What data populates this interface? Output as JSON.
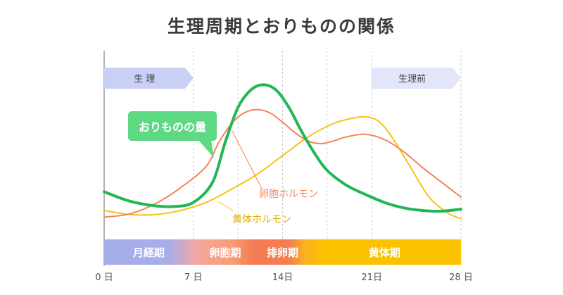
{
  "chart_data": {
    "type": "line",
    "title": "生理周期とおりものの関係",
    "xlim": [
      0,
      28
    ],
    "x_ticks": [
      {
        "value": 0,
        "label": "0 日"
      },
      {
        "value": 7,
        "label": "7 日"
      },
      {
        "value": 14,
        "label": "14日"
      },
      {
        "value": 21,
        "label": "21日"
      },
      {
        "value": 28,
        "label": "28 日"
      }
    ],
    "top_banners": [
      {
        "label": "生 理",
        "start": 0,
        "end": 7,
        "color": "#c9cff5"
      },
      {
        "label": "生理前",
        "start": 21,
        "end": 28,
        "color": "#e3e6fa"
      }
    ],
    "phases": [
      {
        "label": "月経期",
        "start": 0,
        "end": 7,
        "color": "#a6aee9"
      },
      {
        "label": "卵胞期",
        "start": 7,
        "end": 12,
        "color": "#f7a07a"
      },
      {
        "label": "排卵期",
        "start": 12,
        "end": 16,
        "color": "#f57b52"
      },
      {
        "label": "黄体期",
        "start": 16,
        "end": 28,
        "color": "#fbc200"
      }
    ],
    "series": [
      {
        "name": "おりものの量",
        "color": "#21b755",
        "x": [
          0,
          2,
          4,
          5.5,
          7,
          8.5,
          9.5,
          10.5,
          11.5,
          12.5,
          13.5,
          14.5,
          15.5,
          16.5,
          17.5,
          19,
          20.5,
          22,
          23.5,
          25,
          26.5,
          28
        ],
        "y": [
          0.24,
          0.17,
          0.135,
          0.13,
          0.16,
          0.31,
          0.61,
          0.87,
          1.0,
          1.04,
          1.0,
          0.87,
          0.69,
          0.53,
          0.4,
          0.29,
          0.22,
          0.16,
          0.12,
          0.1,
          0.095,
          0.11
        ]
      },
      {
        "name": "卵胞ホルモン",
        "color": "#f5845a",
        "x": [
          0,
          2,
          4,
          6,
          8,
          9,
          10,
          11,
          12,
          13,
          14,
          15,
          16,
          17,
          18,
          19,
          20.5,
          22,
          23.5,
          25,
          26.5,
          28
        ],
        "y": [
          0.05,
          0.075,
          0.15,
          0.27,
          0.43,
          0.61,
          0.75,
          0.83,
          0.855,
          0.83,
          0.76,
          0.68,
          0.62,
          0.6,
          0.62,
          0.65,
          0.67,
          0.63,
          0.54,
          0.42,
          0.31,
          0.2
        ]
      },
      {
        "name": "黄体ホルモン",
        "color": "#f5c218",
        "x": [
          0,
          2,
          4,
          6,
          8,
          10,
          12,
          14,
          16,
          18,
          19.5,
          20.5,
          21.5,
          22.5,
          24,
          25.5,
          27,
          28
        ],
        "y": [
          0.1,
          0.07,
          0.07,
          0.1,
          0.16,
          0.26,
          0.37,
          0.51,
          0.65,
          0.75,
          0.79,
          0.8,
          0.77,
          0.66,
          0.43,
          0.2,
          0.08,
          0.04
        ]
      }
    ],
    "annotations": {
      "green_callout": "おりものの量",
      "orange_label": "卵胞ホルモン",
      "yellow_label": "黄体ホルモン"
    },
    "grid": "vertical-dashed"
  }
}
